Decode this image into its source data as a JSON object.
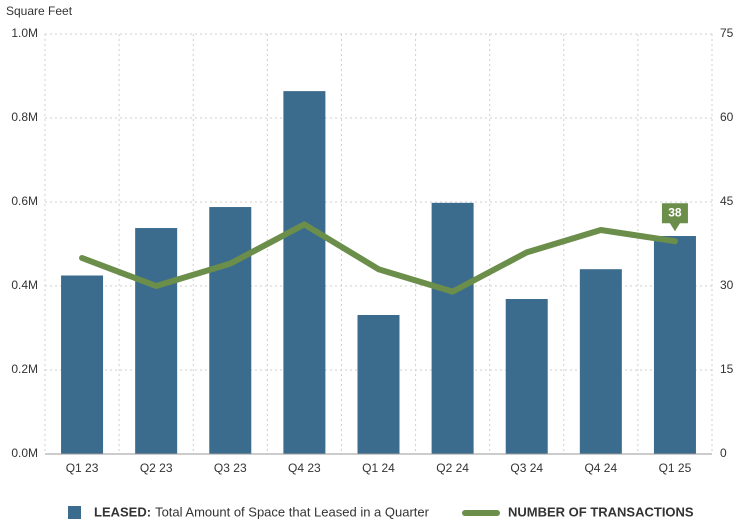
{
  "chart_data": {
    "type": "bar_line",
    "y_label": "Square Feet",
    "categories": [
      "Q1 23",
      "Q2 23",
      "Q3 23",
      "Q4 23",
      "Q1 24",
      "Q2 24",
      "Q3 24",
      "Q4 24",
      "Q1 25"
    ],
    "series": [
      {
        "name": "LEASED:",
        "description": "Total Amount of Space that Leased in a Quarter",
        "color": "#3b6b8d",
        "type": "bar",
        "values": [
          425000,
          538000,
          588000,
          864000,
          331000,
          598000,
          369000,
          440000,
          519000
        ]
      },
      {
        "name": "NUMBER OF TRANSACTIONS",
        "color": "#6b8e4a",
        "type": "line",
        "axis": "y2",
        "values": [
          35,
          30,
          34,
          41,
          33,
          29,
          36,
          40,
          38
        ],
        "labeled_points": [
          8
        ]
      }
    ],
    "ylim": [
      0,
      1000000
    ],
    "yticks": [
      {
        "value": 0,
        "label": "0.0M"
      },
      {
        "value": 200000,
        "label": "0.2M"
      },
      {
        "value": 400000,
        "label": "0.4M"
      },
      {
        "value": 600000,
        "label": "0.6M"
      },
      {
        "value": 800000,
        "label": "0.8M"
      },
      {
        "value": 1000000,
        "label": "1.0M"
      }
    ],
    "y2lim": [
      0,
      75
    ],
    "y2ticks": [
      0,
      15,
      30,
      45,
      60,
      75
    ],
    "grid": true
  }
}
